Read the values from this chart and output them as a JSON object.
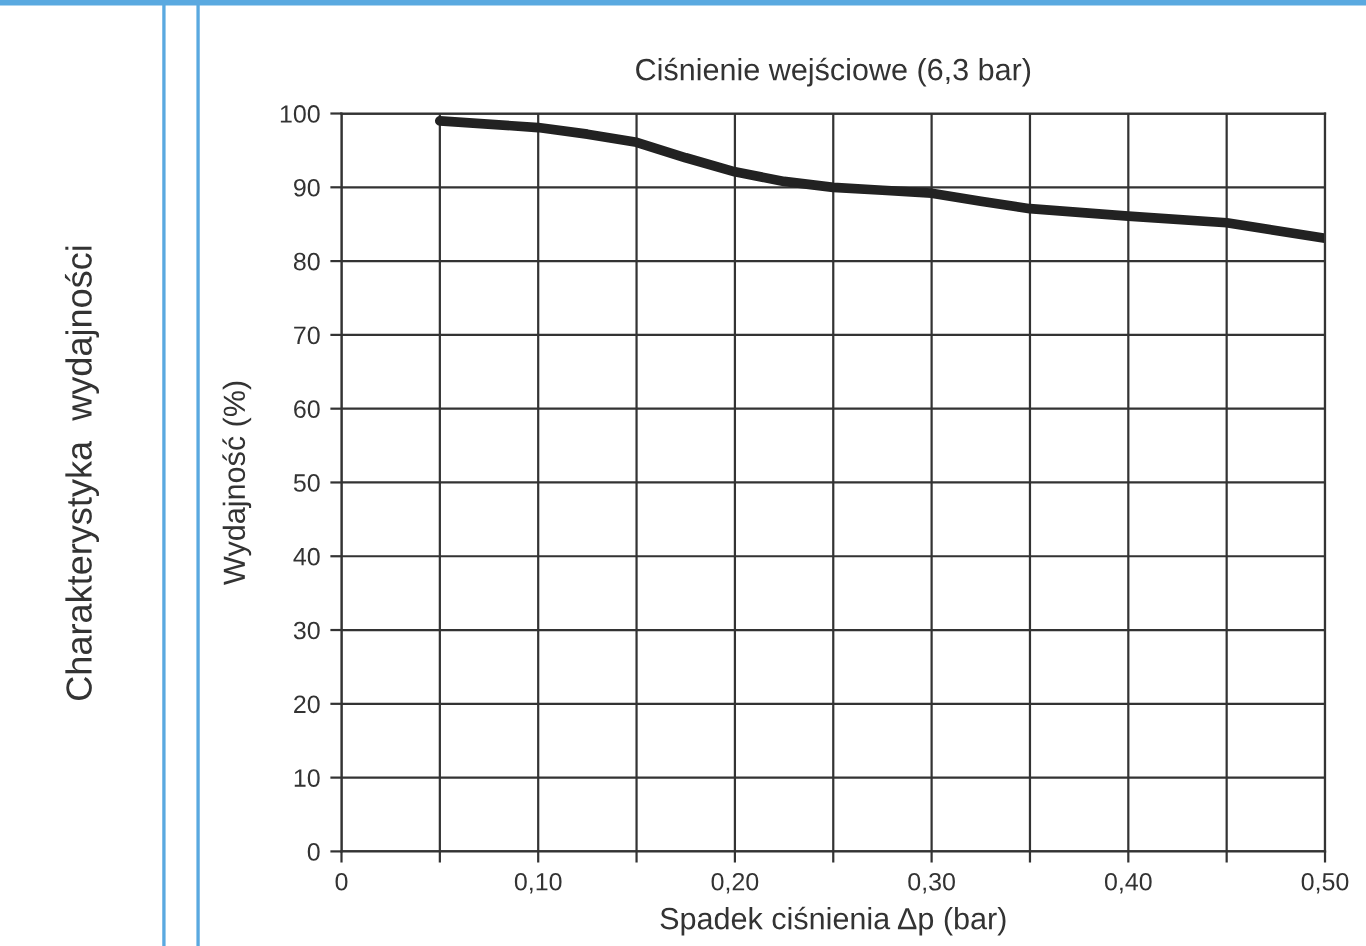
{
  "chart_data": {
    "type": "line",
    "title": "Ciśnienie wejściowe (6,3 bar)",
    "xlabel": "Spadek ciśnienia Δp (bar)",
    "ylabel": "Wydajność (%)",
    "annotations": [
      "Charakterystyka  wydajności"
    ],
    "x": [
      0.05,
      0.1,
      0.125,
      0.15,
      0.175,
      0.2,
      0.225,
      0.25,
      0.275,
      0.3,
      0.325,
      0.35,
      0.375,
      0.4,
      0.45,
      0.5
    ],
    "series": [
      {
        "color": "#222222",
        "values": [
          99,
          98.1,
          97.2,
          96.1,
          94,
          92.1,
          90.8,
          90,
          89.6,
          89.2,
          88.1,
          87.1,
          86.6,
          86.1,
          85.2,
          83.1
        ]
      }
    ],
    "xlim": [
      0,
      0.5
    ],
    "ylim": [
      0,
      100
    ],
    "xticks": [
      {
        "value": 0,
        "label": "0"
      },
      {
        "value": 0.05,
        "label": null
      },
      {
        "value": 0.1,
        "label": "0,10"
      },
      {
        "value": 0.15,
        "label": null
      },
      {
        "value": 0.2,
        "label": "0,20"
      },
      {
        "value": 0.25,
        "label": null
      },
      {
        "value": 0.3,
        "label": "0,30"
      },
      {
        "value": 0.35,
        "label": null
      },
      {
        "value": 0.4,
        "label": "0,40"
      },
      {
        "value": 0.45,
        "label": null
      },
      {
        "value": 0.5,
        "label": "0,50"
      }
    ],
    "yticks": [
      0,
      10,
      20,
      30,
      40,
      50,
      60,
      70,
      80,
      90,
      100
    ],
    "grid": true,
    "legend": false,
    "marker": "none",
    "line_style": "solid"
  }
}
